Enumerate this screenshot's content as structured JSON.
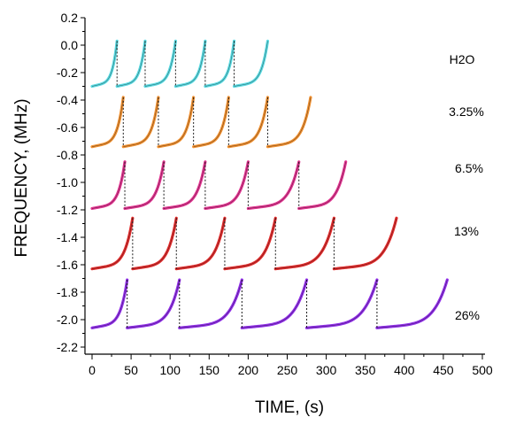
{
  "chart_data": {
    "type": "line",
    "xlabel": "TIME, (s)",
    "ylabel": "FREQUENCY, (MHz)",
    "xlim": [
      0,
      500
    ],
    "ylim": [
      -2.3,
      0.2
    ],
    "xticks": [
      0,
      50,
      100,
      150,
      200,
      250,
      300,
      350,
      400,
      450,
      500
    ],
    "yticks": [
      0.2,
      0.0,
      -0.2,
      -0.4,
      -0.6,
      -0.8,
      -1.0,
      -1.2,
      -1.4,
      -1.6,
      -1.8,
      -2.0,
      -2.2
    ],
    "grid": false,
    "legend": "none",
    "series": [
      {
        "name": "H2O",
        "color": "#4fd8e0",
        "base": -0.3,
        "top": 0.03,
        "cycles": [
          [
            0,
            32
          ],
          [
            32,
            68
          ],
          [
            68,
            107
          ],
          [
            107,
            145
          ],
          [
            145,
            182
          ],
          [
            182,
            225
          ]
        ]
      },
      {
        "name": "3.25%",
        "color": "#f08a24",
        "base": -0.74,
        "top": -0.38,
        "cycles": [
          [
            0,
            40
          ],
          [
            40,
            85
          ],
          [
            85,
            130
          ],
          [
            130,
            175
          ],
          [
            175,
            225
          ],
          [
            225,
            280
          ]
        ]
      },
      {
        "name": "6.5%",
        "color": "#e0288a",
        "base": -1.19,
        "top": -0.85,
        "cycles": [
          [
            0,
            42
          ],
          [
            42,
            92
          ],
          [
            92,
            145
          ],
          [
            145,
            200
          ],
          [
            200,
            265
          ],
          [
            265,
            325
          ]
        ]
      },
      {
        "name": "13%",
        "color": "#e02020",
        "base": -1.63,
        "top": -1.26,
        "cycles": [
          [
            0,
            52
          ],
          [
            52,
            108
          ],
          [
            108,
            170
          ],
          [
            170,
            235
          ],
          [
            235,
            310
          ],
          [
            310,
            390
          ]
        ]
      },
      {
        "name": "26%",
        "color": "#8a22e8",
        "base": -2.06,
        "top": -1.71,
        "cycles": [
          [
            0,
            45
          ],
          [
            45,
            112
          ],
          [
            112,
            192
          ],
          [
            192,
            275
          ],
          [
            275,
            365
          ],
          [
            365,
            455
          ]
        ]
      }
    ]
  }
}
